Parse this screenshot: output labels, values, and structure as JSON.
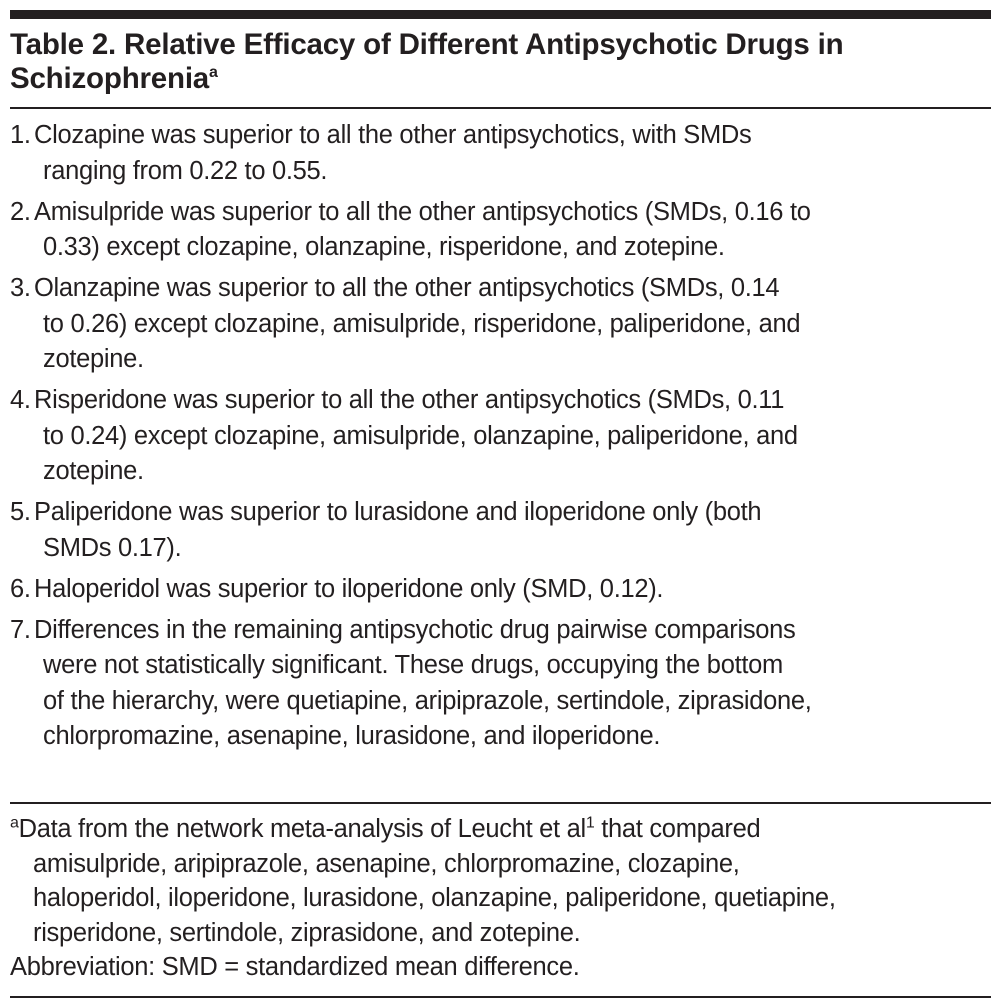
{
  "title": {
    "line1": "Table 2. Relative Efficacy of Different Antipsychotic Drugs in",
    "line2": "Schizophrenia",
    "sup": "a"
  },
  "items": [
    {
      "num": "1.",
      "lines": [
        "Clozapine was superior to all the other antipsychotics, with SMDs",
        "ranging from 0.22 to 0.55."
      ]
    },
    {
      "num": "2.",
      "lines": [
        "Amisulpride was superior to all the other antipsychotics (SMDs, 0.16 to",
        "0.33) except clozapine, olanzapine, risperidone, and zotepine."
      ]
    },
    {
      "num": "3.",
      "lines": [
        "Olanzapine was superior to all the other antipsychotics (SMDs, 0.14",
        "to 0.26) except clozapine, amisulpride, risperidone, paliperidone, and",
        "zotepine."
      ]
    },
    {
      "num": "4.",
      "lines": [
        "Risperidone was superior to all the other antipsychotics (SMDs, 0.11",
        "to 0.24) except clozapine, amisulpride, olanzapine, paliperidone, and",
        "zotepine."
      ]
    },
    {
      "num": "5.",
      "lines": [
        "Paliperidone was superior to lurasidone and iloperidone only (both",
        "SMDs 0.17)."
      ]
    },
    {
      "num": "6.",
      "lines": [
        "Haloperidol was superior to iloperidone only (SMD, 0.12)."
      ]
    },
    {
      "num": "7.",
      "lines": [
        "Differences in the remaining antipsychotic drug pairwise comparisons",
        "were not statistically significant. These drugs, occupying the bottom",
        "of the hierarchy, were quetiapine, aripiprazole, sertindole, ziprasidone,",
        "chlorpromazine, asenapine, lurasidone, and iloperidone."
      ]
    }
  ],
  "footnote": {
    "marker": "a",
    "line1_pre": "Data from the network meta-analysis of Leucht et al",
    "ref": "1",
    "line1_post": " that compared",
    "lines": [
      "amisulpride, aripiprazole, asenapine, chlorpromazine, clozapine,",
      "haloperidol, iloperidone, lurasidone, olanzapine, paliperidone, quetiapine,",
      "risperidone, sertindole, ziprasidone, and zotepine."
    ]
  },
  "abbreviation": "Abbreviation: SMD = standardized mean difference."
}
